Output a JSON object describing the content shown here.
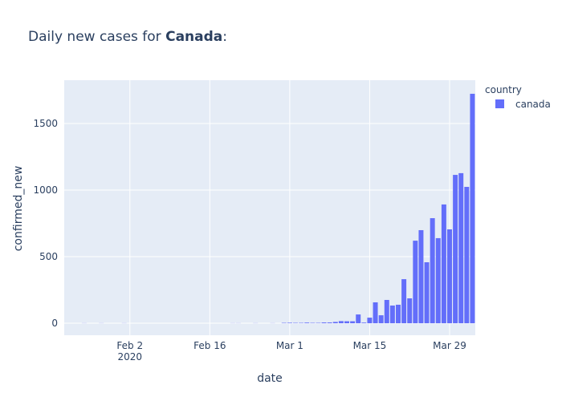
{
  "chart_data": {
    "type": "bar",
    "title": [
      "Daily new cases for ",
      "Canada",
      ":"
    ],
    "x_label": "date",
    "y_label": "confirmed_new",
    "legend_title": "country",
    "series": [
      {
        "name": "canada",
        "color": "#636efa",
        "values": [
          0,
          0,
          0,
          1,
          0,
          0,
          1,
          0,
          0,
          0,
          1,
          0,
          0,
          0,
          0,
          0,
          0,
          0,
          0,
          0,
          0,
          0,
          0,
          0,
          0,
          0,
          0,
          0,
          0,
          1,
          1,
          0,
          0,
          1,
          0,
          0,
          1,
          0,
          3,
          4,
          3,
          3,
          5,
          3,
          3,
          6,
          6,
          10,
          16,
          15,
          15,
          66,
          5,
          42,
          157,
          60,
          175,
          133,
          139,
          331,
          187,
          620,
          699,
          458,
          789,
          639,
          892,
          705,
          1114,
          1127,
          1024,
          1723
        ]
      }
    ],
    "x": [
      "2020-01-22",
      "2020-01-23",
      "2020-01-24",
      "2020-01-25",
      "2020-01-26",
      "2020-01-27",
      "2020-01-28",
      "2020-01-29",
      "2020-01-30",
      "2020-01-31",
      "2020-02-01",
      "2020-02-02",
      "2020-02-03",
      "2020-02-04",
      "2020-02-05",
      "2020-02-06",
      "2020-02-07",
      "2020-02-08",
      "2020-02-09",
      "2020-02-10",
      "2020-02-11",
      "2020-02-12",
      "2020-02-13",
      "2020-02-14",
      "2020-02-15",
      "2020-02-16",
      "2020-02-17",
      "2020-02-18",
      "2020-02-19",
      "2020-02-20",
      "2020-02-21",
      "2020-02-22",
      "2020-02-23",
      "2020-02-24",
      "2020-02-25",
      "2020-02-26",
      "2020-02-27",
      "2020-02-28",
      "2020-02-29",
      "2020-03-01",
      "2020-03-02",
      "2020-03-03",
      "2020-03-04",
      "2020-03-05",
      "2020-03-06",
      "2020-03-07",
      "2020-03-08",
      "2020-03-09",
      "2020-03-10",
      "2020-03-11",
      "2020-03-12",
      "2020-03-13",
      "2020-03-14",
      "2020-03-15",
      "2020-03-16",
      "2020-03-17",
      "2020-03-18",
      "2020-03-19",
      "2020-03-20",
      "2020-03-21",
      "2020-03-22",
      "2020-03-23",
      "2020-03-24",
      "2020-03-25",
      "2020-03-26",
      "2020-03-27",
      "2020-03-28",
      "2020-03-29",
      "2020-03-30",
      "2020-03-31",
      "2020-04-01",
      "2020-04-02"
    ],
    "xlim": [
      "2020-01-21T12:00",
      "2020-04-02T12:00"
    ],
    "xticks": [
      {
        "value": "2020-02-02",
        "label": "Feb 2"
      },
      {
        "value": "2020-02-16",
        "label": "Feb 16"
      },
      {
        "value": "2020-03-01",
        "label": "Mar 1"
      },
      {
        "value": "2020-03-15",
        "label": "Mar 15"
      },
      {
        "value": "2020-03-29",
        "label": "Mar 29"
      }
    ],
    "xtick_year": "2020",
    "ylim": [
      -90,
      1825
    ],
    "yticks": [
      0,
      500,
      1000,
      1500
    ],
    "grid": true
  }
}
